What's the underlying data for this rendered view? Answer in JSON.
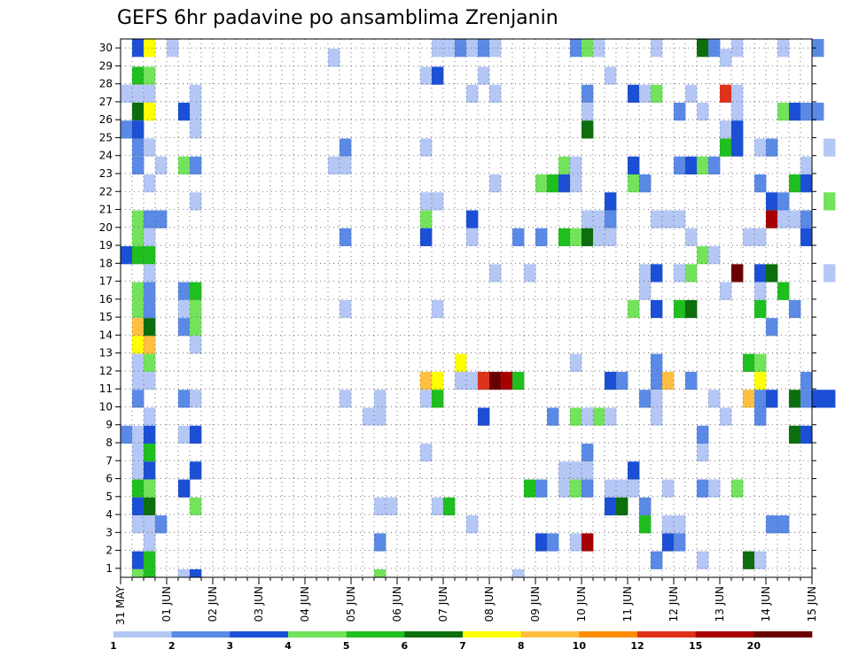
{
  "chart_data": {
    "type": "heatmap",
    "title": "GEFS 6hr padavine po ansamblima Zrenjanin",
    "xlabel": "",
    "ylabel": "",
    "y_members": [
      1,
      30
    ],
    "y_tick_labels": [
      "1",
      "2",
      "3",
      "4",
      "5",
      "6",
      "7",
      "8",
      "9",
      "10",
      "11",
      "12",
      "13",
      "14",
      "15",
      "16",
      "17",
      "18",
      "19",
      "20",
      "21",
      "22",
      "23",
      "24",
      "25",
      "26",
      "27",
      "28",
      "29",
      "30"
    ],
    "x_tick_labels": [
      "31 MAY",
      "01 JUN",
      "02 JUN",
      "03 JUN",
      "04 JUN",
      "05 JUN",
      "06 JUN",
      "07 JUN",
      "08 JUN",
      "09 JUN",
      "10 JUN",
      "11 JUN",
      "12 JUN",
      "13 JUN",
      "14 JUN",
      "15 JUN"
    ],
    "x_steps_per_day": 4,
    "x_range_steps": [
      0,
      61
    ],
    "grid": "dotted",
    "colorbar": {
      "levels": [
        "1",
        "2",
        "3",
        "4",
        "5",
        "6",
        "7",
        "8",
        "10",
        "12",
        "15",
        "20"
      ],
      "colors": [
        "#b4c7f5",
        "#5a8ae6",
        "#1a4fd6",
        "#73e35c",
        "#1fbf1f",
        "#0c6e0c",
        "#ffff00",
        "#ffbf40",
        "#ff8c00",
        "#e0321a",
        "#a80000",
        "#6b0000"
      ]
    },
    "cells": [
      [
        1,
        30,
        3
      ],
      [
        2,
        30,
        7
      ],
      [
        4,
        30,
        1
      ],
      [
        18,
        29,
        1
      ],
      [
        27,
        30,
        1
      ],
      [
        28,
        30,
        1
      ],
      [
        29,
        30,
        2
      ],
      [
        30,
        30,
        1
      ],
      [
        31,
        30,
        2
      ],
      [
        32,
        30,
        1
      ],
      [
        39,
        30,
        2
      ],
      [
        40,
        30,
        4
      ],
      [
        41,
        30,
        1
      ],
      [
        46,
        30,
        1
      ],
      [
        50,
        30,
        6
      ],
      [
        51,
        30,
        2
      ],
      [
        53,
        30,
        1
      ],
      [
        57,
        30,
        1
      ],
      [
        60,
        30,
        2
      ],
      [
        18,
        29,
        1
      ],
      [
        52,
        29,
        1
      ],
      [
        1,
        28,
        5
      ],
      [
        2,
        28,
        4
      ],
      [
        26,
        28,
        1
      ],
      [
        27,
        28,
        3
      ],
      [
        31,
        28,
        1
      ],
      [
        42,
        28,
        1
      ],
      [
        0,
        27,
        1
      ],
      [
        1,
        27,
        1
      ],
      [
        2,
        27,
        1
      ],
      [
        6,
        27,
        1
      ],
      [
        30,
        27,
        1
      ],
      [
        32,
        27,
        1
      ],
      [
        40,
        27,
        2
      ],
      [
        44,
        27,
        3
      ],
      [
        45,
        27,
        1
      ],
      [
        46,
        27,
        4
      ],
      [
        49,
        27,
        1
      ],
      [
        52,
        27,
        10
      ],
      [
        53,
        27,
        1
      ],
      [
        1,
        26,
        6
      ],
      [
        2,
        26,
        7
      ],
      [
        5,
        26,
        3
      ],
      [
        6,
        26,
        1
      ],
      [
        40,
        26,
        1
      ],
      [
        48,
        26,
        2
      ],
      [
        50,
        26,
        1
      ],
      [
        53,
        26,
        1
      ],
      [
        57,
        26,
        4
      ],
      [
        58,
        26,
        3
      ],
      [
        59,
        26,
        2
      ],
      [
        60,
        26,
        2
      ],
      [
        0,
        25,
        2
      ],
      [
        1,
        25,
        3
      ],
      [
        6,
        25,
        1
      ],
      [
        40,
        25,
        6
      ],
      [
        52,
        25,
        1
      ],
      [
        53,
        25,
        3
      ],
      [
        1,
        24,
        2
      ],
      [
        2,
        24,
        1
      ],
      [
        19,
        24,
        2
      ],
      [
        26,
        24,
        1
      ],
      [
        52,
        24,
        5
      ],
      [
        53,
        24,
        3
      ],
      [
        55,
        24,
        1
      ],
      [
        56,
        24,
        2
      ],
      [
        61,
        24,
        1
      ],
      [
        1,
        23,
        2
      ],
      [
        3,
        23,
        1
      ],
      [
        5,
        23,
        4
      ],
      [
        6,
        23,
        2
      ],
      [
        18,
        23,
        1
      ],
      [
        19,
        23,
        1
      ],
      [
        38,
        23,
        4
      ],
      [
        39,
        23,
        1
      ],
      [
        44,
        23,
        3
      ],
      [
        48,
        23,
        2
      ],
      [
        49,
        23,
        3
      ],
      [
        50,
        23,
        4
      ],
      [
        51,
        23,
        2
      ],
      [
        59,
        23,
        1
      ],
      [
        2,
        22,
        1
      ],
      [
        32,
        22,
        1
      ],
      [
        36,
        22,
        4
      ],
      [
        37,
        22,
        5
      ],
      [
        38,
        22,
        3
      ],
      [
        39,
        22,
        1
      ],
      [
        44,
        22,
        4
      ],
      [
        45,
        22,
        2
      ],
      [
        55,
        22,
        2
      ],
      [
        58,
        22,
        5
      ],
      [
        59,
        22,
        3
      ],
      [
        6,
        21,
        1
      ],
      [
        26,
        21,
        1
      ],
      [
        27,
        21,
        1
      ],
      [
        42,
        21,
        3
      ],
      [
        56,
        21,
        3
      ],
      [
        57,
        21,
        2
      ],
      [
        61,
        21,
        4
      ],
      [
        1,
        20,
        4
      ],
      [
        2,
        20,
        2
      ],
      [
        3,
        20,
        2
      ],
      [
        26,
        20,
        4
      ],
      [
        30,
        20,
        3
      ],
      [
        40,
        20,
        1
      ],
      [
        41,
        20,
        1
      ],
      [
        42,
        20,
        2
      ],
      [
        46,
        20,
        1
      ],
      [
        47,
        20,
        1
      ],
      [
        48,
        20,
        1
      ],
      [
        56,
        20,
        11
      ],
      [
        57,
        20,
        1
      ],
      [
        58,
        20,
        1
      ],
      [
        59,
        20,
        2
      ],
      [
        1,
        19,
        4
      ],
      [
        2,
        19,
        1
      ],
      [
        19,
        19,
        2
      ],
      [
        26,
        19,
        3
      ],
      [
        30,
        19,
        1
      ],
      [
        34,
        19,
        2
      ],
      [
        36,
        19,
        2
      ],
      [
        38,
        19,
        5
      ],
      [
        39,
        19,
        4
      ],
      [
        40,
        19,
        6
      ],
      [
        41,
        19,
        1
      ],
      [
        42,
        19,
        1
      ],
      [
        49,
        19,
        1
      ],
      [
        54,
        19,
        1
      ],
      [
        55,
        19,
        1
      ],
      [
        59,
        19,
        3
      ],
      [
        0,
        18,
        3
      ],
      [
        1,
        18,
        5
      ],
      [
        2,
        18,
        5
      ],
      [
        50,
        18,
        4
      ],
      [
        51,
        18,
        1
      ],
      [
        2,
        17,
        1
      ],
      [
        32,
        17,
        1
      ],
      [
        35,
        17,
        1
      ],
      [
        45,
        17,
        1
      ],
      [
        46,
        17,
        3
      ],
      [
        48,
        17,
        1
      ],
      [
        49,
        17,
        4
      ],
      [
        53,
        17,
        12
      ],
      [
        55,
        17,
        3
      ],
      [
        56,
        17,
        6
      ],
      [
        61,
        17,
        1
      ],
      [
        1,
        16,
        4
      ],
      [
        2,
        16,
        2
      ],
      [
        5,
        16,
        2
      ],
      [
        6,
        16,
        5
      ],
      [
        45,
        16,
        1
      ],
      [
        52,
        16,
        1
      ],
      [
        55,
        16,
        1
      ],
      [
        57,
        16,
        5
      ],
      [
        1,
        15,
        4
      ],
      [
        2,
        15,
        2
      ],
      [
        5,
        15,
        1
      ],
      [
        6,
        15,
        4
      ],
      [
        19,
        15,
        1
      ],
      [
        27,
        15,
        1
      ],
      [
        44,
        15,
        4
      ],
      [
        46,
        15,
        3
      ],
      [
        48,
        15,
        5
      ],
      [
        49,
        15,
        6
      ],
      [
        55,
        15,
        5
      ],
      [
        58,
        15,
        2
      ],
      [
        1,
        14,
        8
      ],
      [
        2,
        14,
        6
      ],
      [
        5,
        14,
        2
      ],
      [
        6,
        14,
        4
      ],
      [
        56,
        14,
        2
      ],
      [
        1,
        13,
        7
      ],
      [
        2,
        13,
        8
      ],
      [
        6,
        13,
        1
      ],
      [
        1,
        12,
        1
      ],
      [
        2,
        12,
        4
      ],
      [
        29,
        12,
        7
      ],
      [
        39,
        12,
        1
      ],
      [
        46,
        12,
        2
      ],
      [
        54,
        12,
        5
      ],
      [
        55,
        12,
        4
      ],
      [
        1,
        11,
        1
      ],
      [
        2,
        11,
        1
      ],
      [
        26,
        11,
        8
      ],
      [
        27,
        11,
        7
      ],
      [
        29,
        11,
        1
      ],
      [
        30,
        11,
        1
      ],
      [
        31,
        11,
        10
      ],
      [
        32,
        11,
        12
      ],
      [
        33,
        11,
        11
      ],
      [
        34,
        11,
        5
      ],
      [
        42,
        11,
        3
      ],
      [
        43,
        11,
        2
      ],
      [
        46,
        11,
        2
      ],
      [
        47,
        11,
        8
      ],
      [
        49,
        11,
        2
      ],
      [
        55,
        11,
        7
      ],
      [
        59,
        11,
        2
      ],
      [
        1,
        10,
        2
      ],
      [
        5,
        10,
        2
      ],
      [
        6,
        10,
        1
      ],
      [
        19,
        10,
        1
      ],
      [
        22,
        10,
        1
      ],
      [
        26,
        10,
        1
      ],
      [
        27,
        10,
        5
      ],
      [
        45,
        10,
        2
      ],
      [
        46,
        10,
        1
      ],
      [
        51,
        10,
        1
      ],
      [
        54,
        10,
        8
      ],
      [
        55,
        10,
        2
      ],
      [
        56,
        10,
        3
      ],
      [
        58,
        10,
        6
      ],
      [
        59,
        10,
        2
      ],
      [
        60,
        10,
        3
      ],
      [
        61,
        10,
        3
      ],
      [
        2,
        9,
        1
      ],
      [
        21,
        9,
        1
      ],
      [
        22,
        9,
        1
      ],
      [
        31,
        9,
        3
      ],
      [
        37,
        9,
        2
      ],
      [
        39,
        9,
        4
      ],
      [
        40,
        9,
        1
      ],
      [
        41,
        9,
        4
      ],
      [
        42,
        9,
        1
      ],
      [
        46,
        9,
        1
      ],
      [
        52,
        9,
        1
      ],
      [
        55,
        9,
        2
      ],
      [
        0,
        8,
        2
      ],
      [
        1,
        8,
        1
      ],
      [
        2,
        8,
        3
      ],
      [
        5,
        8,
        1
      ],
      [
        6,
        8,
        3
      ],
      [
        50,
        8,
        2
      ],
      [
        58,
        8,
        6
      ],
      [
        59,
        8,
        3
      ],
      [
        1,
        7,
        1
      ],
      [
        2,
        7,
        5
      ],
      [
        26,
        7,
        1
      ],
      [
        40,
        7,
        2
      ],
      [
        50,
        7,
        1
      ],
      [
        1,
        6,
        1
      ],
      [
        2,
        6,
        3
      ],
      [
        6,
        6,
        3
      ],
      [
        38,
        6,
        1
      ],
      [
        39,
        6,
        1
      ],
      [
        40,
        6,
        1
      ],
      [
        44,
        6,
        3
      ],
      [
        1,
        5,
        5
      ],
      [
        2,
        5,
        4
      ],
      [
        5,
        5,
        3
      ],
      [
        35,
        5,
        5
      ],
      [
        36,
        5,
        2
      ],
      [
        38,
        5,
        1
      ],
      [
        39,
        5,
        4
      ],
      [
        40,
        5,
        2
      ],
      [
        42,
        5,
        1
      ],
      [
        43,
        5,
        1
      ],
      [
        44,
        5,
        1
      ],
      [
        47,
        5,
        1
      ],
      [
        50,
        5,
        2
      ],
      [
        51,
        5,
        1
      ],
      [
        53,
        5,
        4
      ],
      [
        1,
        4,
        3
      ],
      [
        2,
        4,
        6
      ],
      [
        6,
        4,
        4
      ],
      [
        22,
        4,
        1
      ],
      [
        23,
        4,
        1
      ],
      [
        27,
        4,
        1
      ],
      [
        28,
        4,
        5
      ],
      [
        42,
        4,
        3
      ],
      [
        43,
        4,
        6
      ],
      [
        45,
        4,
        2
      ],
      [
        1,
        3,
        1
      ],
      [
        2,
        3,
        1
      ],
      [
        3,
        3,
        2
      ],
      [
        30,
        3,
        1
      ],
      [
        45,
        3,
        5
      ],
      [
        47,
        3,
        1
      ],
      [
        48,
        3,
        1
      ],
      [
        56,
        3,
        2
      ],
      [
        57,
        3,
        2
      ],
      [
        2,
        2,
        1
      ],
      [
        22,
        2,
        2
      ],
      [
        36,
        2,
        3
      ],
      [
        37,
        2,
        2
      ],
      [
        39,
        2,
        1
      ],
      [
        40,
        2,
        11
      ],
      [
        47,
        2,
        3
      ],
      [
        48,
        2,
        2
      ],
      [
        1,
        1,
        3
      ],
      [
        2,
        1,
        5
      ],
      [
        46,
        1,
        2
      ],
      [
        50,
        1,
        1
      ],
      [
        54,
        1,
        6
      ],
      [
        55,
        1,
        1
      ],
      [
        1,
        0,
        4
      ],
      [
        2,
        0,
        5
      ],
      [
        5,
        0,
        1
      ],
      [
        6,
        0,
        3
      ],
      [
        22,
        0,
        4
      ],
      [
        34,
        0,
        1
      ]
    ]
  }
}
